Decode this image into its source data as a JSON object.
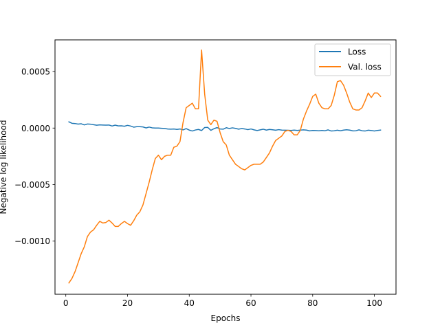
{
  "chart_data": {
    "type": "line",
    "title": "",
    "xlabel": "Epochs",
    "ylabel": "Negative log likelihood",
    "xlim": [
      -3.5,
      107
    ],
    "ylim": [
      -0.00147,
      0.00078
    ],
    "xticks": [
      0,
      20,
      40,
      60,
      80,
      100
    ],
    "xtick_labels": [
      "0",
      "20",
      "40",
      "60",
      "80",
      "100"
    ],
    "yticks": [
      -0.001,
      -0.0005,
      0.0,
      0.0005
    ],
    "ytick_labels": [
      "−0.0010",
      "−0.0005",
      "0.0000",
      "0.0005"
    ],
    "grid": false,
    "legend_position": "top-right",
    "x": [
      1,
      2,
      3,
      4,
      5,
      6,
      7,
      8,
      9,
      10,
      11,
      12,
      13,
      14,
      15,
      16,
      17,
      18,
      19,
      20,
      21,
      22,
      23,
      24,
      25,
      26,
      27,
      28,
      29,
      30,
      31,
      32,
      33,
      34,
      35,
      36,
      37,
      38,
      39,
      40,
      41,
      42,
      43,
      44,
      45,
      46,
      47,
      48,
      49,
      50,
      51,
      52,
      53,
      54,
      55,
      56,
      57,
      58,
      59,
      60,
      61,
      62,
      63,
      64,
      65,
      66,
      67,
      68,
      69,
      70,
      71,
      72,
      73,
      74,
      75,
      76,
      77,
      78,
      79,
      80,
      81,
      82,
      83,
      84,
      85,
      86,
      87,
      88,
      89,
      90,
      91,
      92,
      93,
      94,
      95,
      96,
      97,
      98,
      99,
      100,
      101,
      102
    ],
    "series": [
      {
        "name": "Loss",
        "color": "#1f77b4",
        "values": [
          5.5e-05,
          4.2e-05,
          4e-05,
          3.5e-05,
          3.8e-05,
          2.8e-05,
          3.6e-05,
          3.4e-05,
          3e-05,
          2.5e-05,
          2.8e-05,
          2.7e-05,
          2.6e-05,
          2.7e-05,
          1.8e-05,
          2.6e-05,
          1.9e-05,
          2e-05,
          1.6e-05,
          2.4e-05,
          1.8e-05,
          8e-06,
          1.2e-05,
          1.2e-05,
          1e-05,
          1e-06,
          9e-06,
          2e-06,
          0.0,
          0.0,
          -2e-06,
          -4e-06,
          -8e-06,
          -1e-05,
          -8e-06,
          -1.2e-05,
          -8e-06,
          -1.6e-05,
          -5e-06,
          -1.8e-05,
          -2.6e-05,
          -1.7e-05,
          -1.2e-05,
          -2.2e-05,
          5e-06,
          6e-06,
          -2e-05,
          -6e-06,
          4e-06,
          -8e-06,
          -1e-05,
          3e-06,
          -4e-06,
          2e-06,
          -3e-06,
          -1e-05,
          -4e-06,
          -8e-06,
          -1.4e-05,
          -8e-06,
          -1.6e-05,
          -2.2e-05,
          -1.6e-05,
          -1e-05,
          -1.8e-05,
          -1.2e-05,
          -1.5e-05,
          -1.9e-05,
          -1.4e-05,
          -1.8e-05,
          -1.9e-05,
          -2e-05,
          -2.1e-05,
          -1.8e-05,
          -2.1e-05,
          -1.8e-05,
          -1.6e-05,
          -1.8e-05,
          -2.5e-05,
          -2.1e-05,
          -2.2e-05,
          -2.4e-05,
          -2.1e-05,
          -2.4e-05,
          -1.6e-05,
          -2.6e-05,
          -2.4e-05,
          -1.9e-05,
          -2.4e-05,
          -1.8e-05,
          -1.5e-05,
          -1.8e-05,
          -2.5e-05,
          -2.4e-05,
          -1.6e-05,
          -2.4e-05,
          -2.6e-05,
          -1.9e-05,
          -2.2e-05,
          -2.6e-05,
          -2.1e-05,
          -1.8e-05
        ]
      },
      {
        "name": "Val. loss",
        "color": "#ff7f0e",
        "values": [
          -0.00137,
          -0.00133,
          -0.00127,
          -0.00119,
          -0.00111,
          -0.00105,
          -0.00096,
          -0.00092,
          -0.0009,
          -0.00086,
          -0.000825,
          -0.00084,
          -0.000835,
          -0.000815,
          -0.00084,
          -0.00087,
          -0.00087,
          -0.000845,
          -0.000825,
          -0.000845,
          -0.00086,
          -0.00082,
          -0.00077,
          -0.00074,
          -0.00068,
          -0.00058,
          -0.00048,
          -0.00037,
          -0.00027,
          -0.00024,
          -0.00028,
          -0.00025,
          -0.00024,
          -0.00024,
          -0.00017,
          -0.00016,
          -0.00012,
          5e-05,
          0.00018,
          0.0002,
          0.00022,
          0.00017,
          0.00017,
          0.00069,
          0.0003,
          7e-05,
          3e-05,
          7e-05,
          6e-05,
          -4e-05,
          -0.00012,
          -0.00015,
          -0.00024,
          -0.00028,
          -0.00032,
          -0.00034,
          -0.00036,
          -0.00037,
          -0.00035,
          -0.00033,
          -0.00032,
          -0.00032,
          -0.00032,
          -0.0003,
          -0.00026,
          -0.00022,
          -0.00016,
          -0.00011,
          -9e-05,
          -7e-05,
          -3e-05,
          -2e-05,
          -3e-05,
          -6e-05,
          -6e-05,
          -2e-05,
          8e-05,
          0.00015,
          0.00021,
          0.00028,
          0.0003,
          0.00022,
          0.00018,
          0.00017,
          0.00017,
          0.0002,
          0.00029,
          0.00041,
          0.00042,
          0.00038,
          0.00031,
          0.00023,
          0.00017,
          0.00016,
          0.00016,
          0.00018,
          0.00024,
          0.00031,
          0.00027,
          0.00031,
          0.00031,
          0.00028
        ]
      }
    ]
  }
}
